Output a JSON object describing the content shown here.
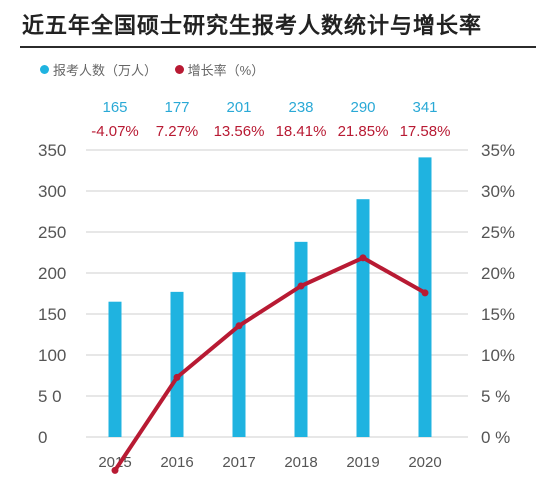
{
  "chart_data": {
    "type": "bar+line",
    "title": "近五年全国硕士研究生报考人数统计与增长率",
    "categories": [
      "2015",
      "2016",
      "2017",
      "2018",
      "2019",
      "2020"
    ],
    "series": [
      {
        "name": "报考人数（万人）",
        "type": "bar",
        "axis": "left",
        "color": "#1fb3e0",
        "values": [
          165,
          177,
          201,
          238,
          290,
          341
        ],
        "labels": [
          "165",
          "177",
          "201",
          "238",
          "290",
          "341"
        ]
      },
      {
        "name": "增长率（%）",
        "type": "line",
        "axis": "right",
        "color": "#b81a33",
        "values": [
          -4.07,
          7.27,
          13.56,
          18.41,
          21.85,
          17.58
        ],
        "labels": [
          "-4.07%",
          "7.27%",
          "13.56%",
          "18.41%",
          "21.85%",
          "17.58%"
        ]
      }
    ],
    "y_left": {
      "ylim": [
        0,
        350
      ],
      "ticks": [
        0,
        50,
        100,
        150,
        200,
        250,
        300,
        350
      ],
      "tick_labels": [
        "0",
        "5 0",
        "100",
        "150",
        "200",
        "250",
        "300",
        "350"
      ]
    },
    "y_right": {
      "ylim": [
        0,
        35
      ],
      "ticks": [
        0,
        5,
        10,
        15,
        20,
        25,
        30,
        35
      ],
      "tick_labels": [
        "0 %",
        "5 %",
        "10%",
        "15%",
        "20%",
        "25%",
        "30%",
        "35%"
      ]
    },
    "x_tick_labels": [
      "2015",
      "2016",
      "2017",
      "2018",
      "2019",
      "2020"
    ],
    "grid": true,
    "legend_position": "top-left",
    "colors": {
      "bar_label": "#2aa9d6",
      "line_label": "#b81a33",
      "grid": "#cfcfcf",
      "axis_text": "#555555"
    }
  }
}
